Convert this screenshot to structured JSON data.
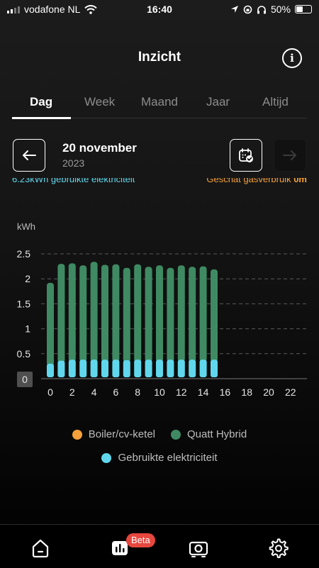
{
  "status_bar": {
    "carrier": "vodafone NL",
    "time": "16:40",
    "battery": "50%"
  },
  "header": {
    "title": "Inzicht"
  },
  "tabs": [
    {
      "label": "Dag",
      "active": true
    },
    {
      "label": "Week",
      "active": false
    },
    {
      "label": "Maand",
      "active": false
    },
    {
      "label": "Jaar",
      "active": false
    },
    {
      "label": "Altijd",
      "active": false
    }
  ],
  "date": {
    "title": "20 november",
    "year": "2023"
  },
  "summary": {
    "left": "6.23kWh gebruikte elektriciteit",
    "right_prefix": "Geschat gasverbruik ",
    "right_value": "0m"
  },
  "colors": {
    "electricity": "#60d7ec",
    "hybrid": "#3f8a63",
    "boiler": "#f5a03a",
    "beta": "#e5473f"
  },
  "chart_data": {
    "type": "bar",
    "stacked": true,
    "ylabel": "kWh",
    "ylim": [
      0,
      2.5
    ],
    "yticks": [
      "0",
      "0.5",
      "1",
      "1.5",
      "2",
      "2.5"
    ],
    "xticks": [
      "0",
      "2",
      "4",
      "6",
      "8",
      "10",
      "12",
      "14",
      "16",
      "18",
      "20",
      "22"
    ],
    "x": [
      0,
      1,
      2,
      3,
      4,
      5,
      6,
      7,
      8,
      9,
      10,
      11,
      12,
      13,
      14,
      15
    ],
    "series": [
      {
        "name": "Gebruikte elektriciteit",
        "values": [
          0.3,
          0.36,
          0.38,
          0.38,
          0.38,
          0.38,
          0.38,
          0.37,
          0.38,
          0.38,
          0.38,
          0.38,
          0.38,
          0.38,
          0.38,
          0.38
        ]
      },
      {
        "name": "Quatt Hybrid",
        "values": [
          1.62,
          1.94,
          1.93,
          1.89,
          1.96,
          1.9,
          1.91,
          1.85,
          1.91,
          1.86,
          1.89,
          1.84,
          1.89,
          1.86,
          1.87,
          1.81
        ]
      },
      {
        "name": "Boiler/cv-ketel",
        "values": [
          0,
          0,
          0,
          0,
          0,
          0,
          0,
          0,
          0,
          0,
          0,
          0,
          0,
          0,
          0,
          0
        ]
      }
    ],
    "grid": true
  },
  "legend": {
    "boiler": "Boiler/cv-ketel",
    "hybrid": "Quatt Hybrid",
    "electricity": "Gebruikte elektriciteit"
  },
  "bottom_nav": {
    "items": [
      {
        "icon": "home-icon"
      },
      {
        "icon": "insight-icon",
        "badge": "Beta"
      },
      {
        "icon": "heat-pump-icon"
      },
      {
        "icon": "gear-icon"
      }
    ]
  }
}
